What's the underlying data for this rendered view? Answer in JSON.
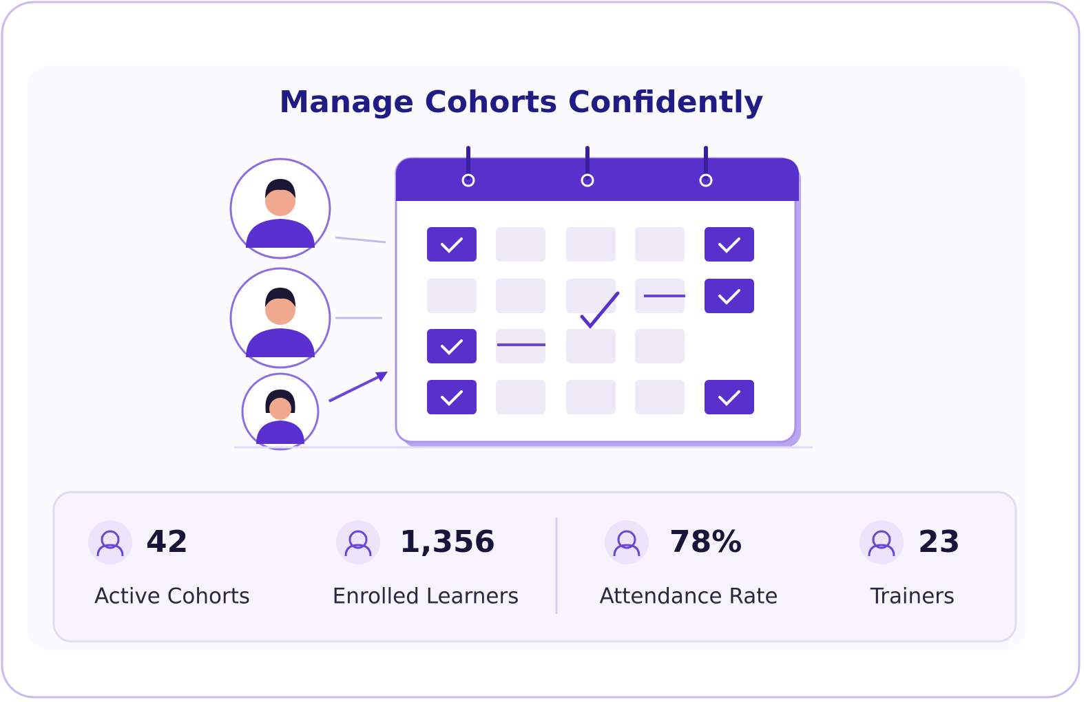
{
  "header": {
    "title": "Manage Cohorts Confidently"
  },
  "stats": [
    {
      "value": "42",
      "label": "Active Cohorts"
    },
    {
      "value": "1,356",
      "label": "Enrolled Learners"
    },
    {
      "value": "78%",
      "label": "Attendance Rate"
    },
    {
      "value": "23",
      "label": "Trainers"
    }
  ]
}
